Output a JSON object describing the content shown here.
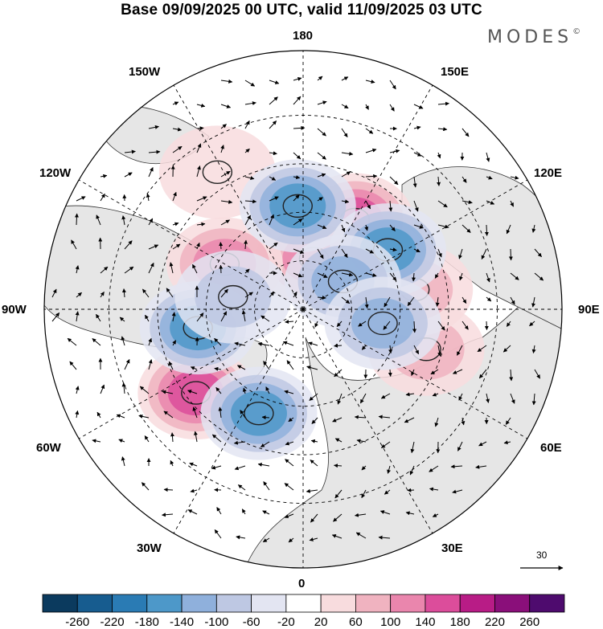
{
  "header": {
    "title": "Base 09/09/2025 00 UTC, valid 11/09/2025 03 UTC",
    "brand": "MODES",
    "brand_mark": "©"
  },
  "map": {
    "projection": "north-polar-stereographic",
    "longitude_labels": {
      "top": "180",
      "bottom": "0",
      "left": "90W",
      "right": "90E",
      "upper_left_1": "150W",
      "upper_left_2": "120W",
      "upper_right_1": "150E",
      "upper_right_2": "120E",
      "lower_left_1": "60W",
      "lower_left_2": "30W",
      "lower_right_1": "60E",
      "lower_right_2": "30E"
    },
    "vector_scale_label": "30",
    "field_centers": [
      {
        "sign": "positive",
        "lon": 150,
        "lat": 58,
        "value": 140
      },
      {
        "sign": "positive",
        "lon": 168,
        "lat": 74,
        "value": 120
      },
      {
        "sign": "positive",
        "lon": -120,
        "lat": 62,
        "value": 120
      },
      {
        "sign": "positive",
        "lon": -52,
        "lat": 48,
        "value": 140
      },
      {
        "sign": "positive",
        "lon": 72,
        "lat": 50,
        "value": 60
      },
      {
        "sign": "positive",
        "lon": 100,
        "lat": 55,
        "value": 60
      },
      {
        "sign": "positive",
        "lon": -148,
        "lat": 40,
        "value": 40
      },
      {
        "sign": "negative",
        "lon": -177,
        "lat": 58,
        "value": -140
      },
      {
        "sign": "negative",
        "lon": 125,
        "lat": 58,
        "value": -140
      },
      {
        "sign": "negative",
        "lon": 125,
        "lat": 75,
        "value": -120
      },
      {
        "sign": "negative",
        "lon": 80,
        "lat": 65,
        "value": -100
      },
      {
        "sign": "negative",
        "lon": -80,
        "lat": 57,
        "value": -140
      },
      {
        "sign": "negative",
        "lon": -100,
        "lat": 68,
        "value": -80
      },
      {
        "sign": "negative",
        "lon": -23,
        "lat": 55,
        "value": -140
      }
    ]
  },
  "colorbar": {
    "labels": [
      "-260",
      "-220",
      "-180",
      "-140",
      "-100",
      "-60",
      "-20",
      "20",
      "60",
      "100",
      "140",
      "180",
      "220",
      "260"
    ],
    "colors": [
      "#0b3a5e",
      "#175c8f",
      "#2a7bb4",
      "#4d98c9",
      "#8fb0dc",
      "#bec8e3",
      "#e3e5f2",
      "#ffffff",
      "#f8dcde",
      "#f0b3c0",
      "#ea86ad",
      "#dc4d9b",
      "#b81c86",
      "#8a0f7a",
      "#4e0b6e"
    ]
  }
}
